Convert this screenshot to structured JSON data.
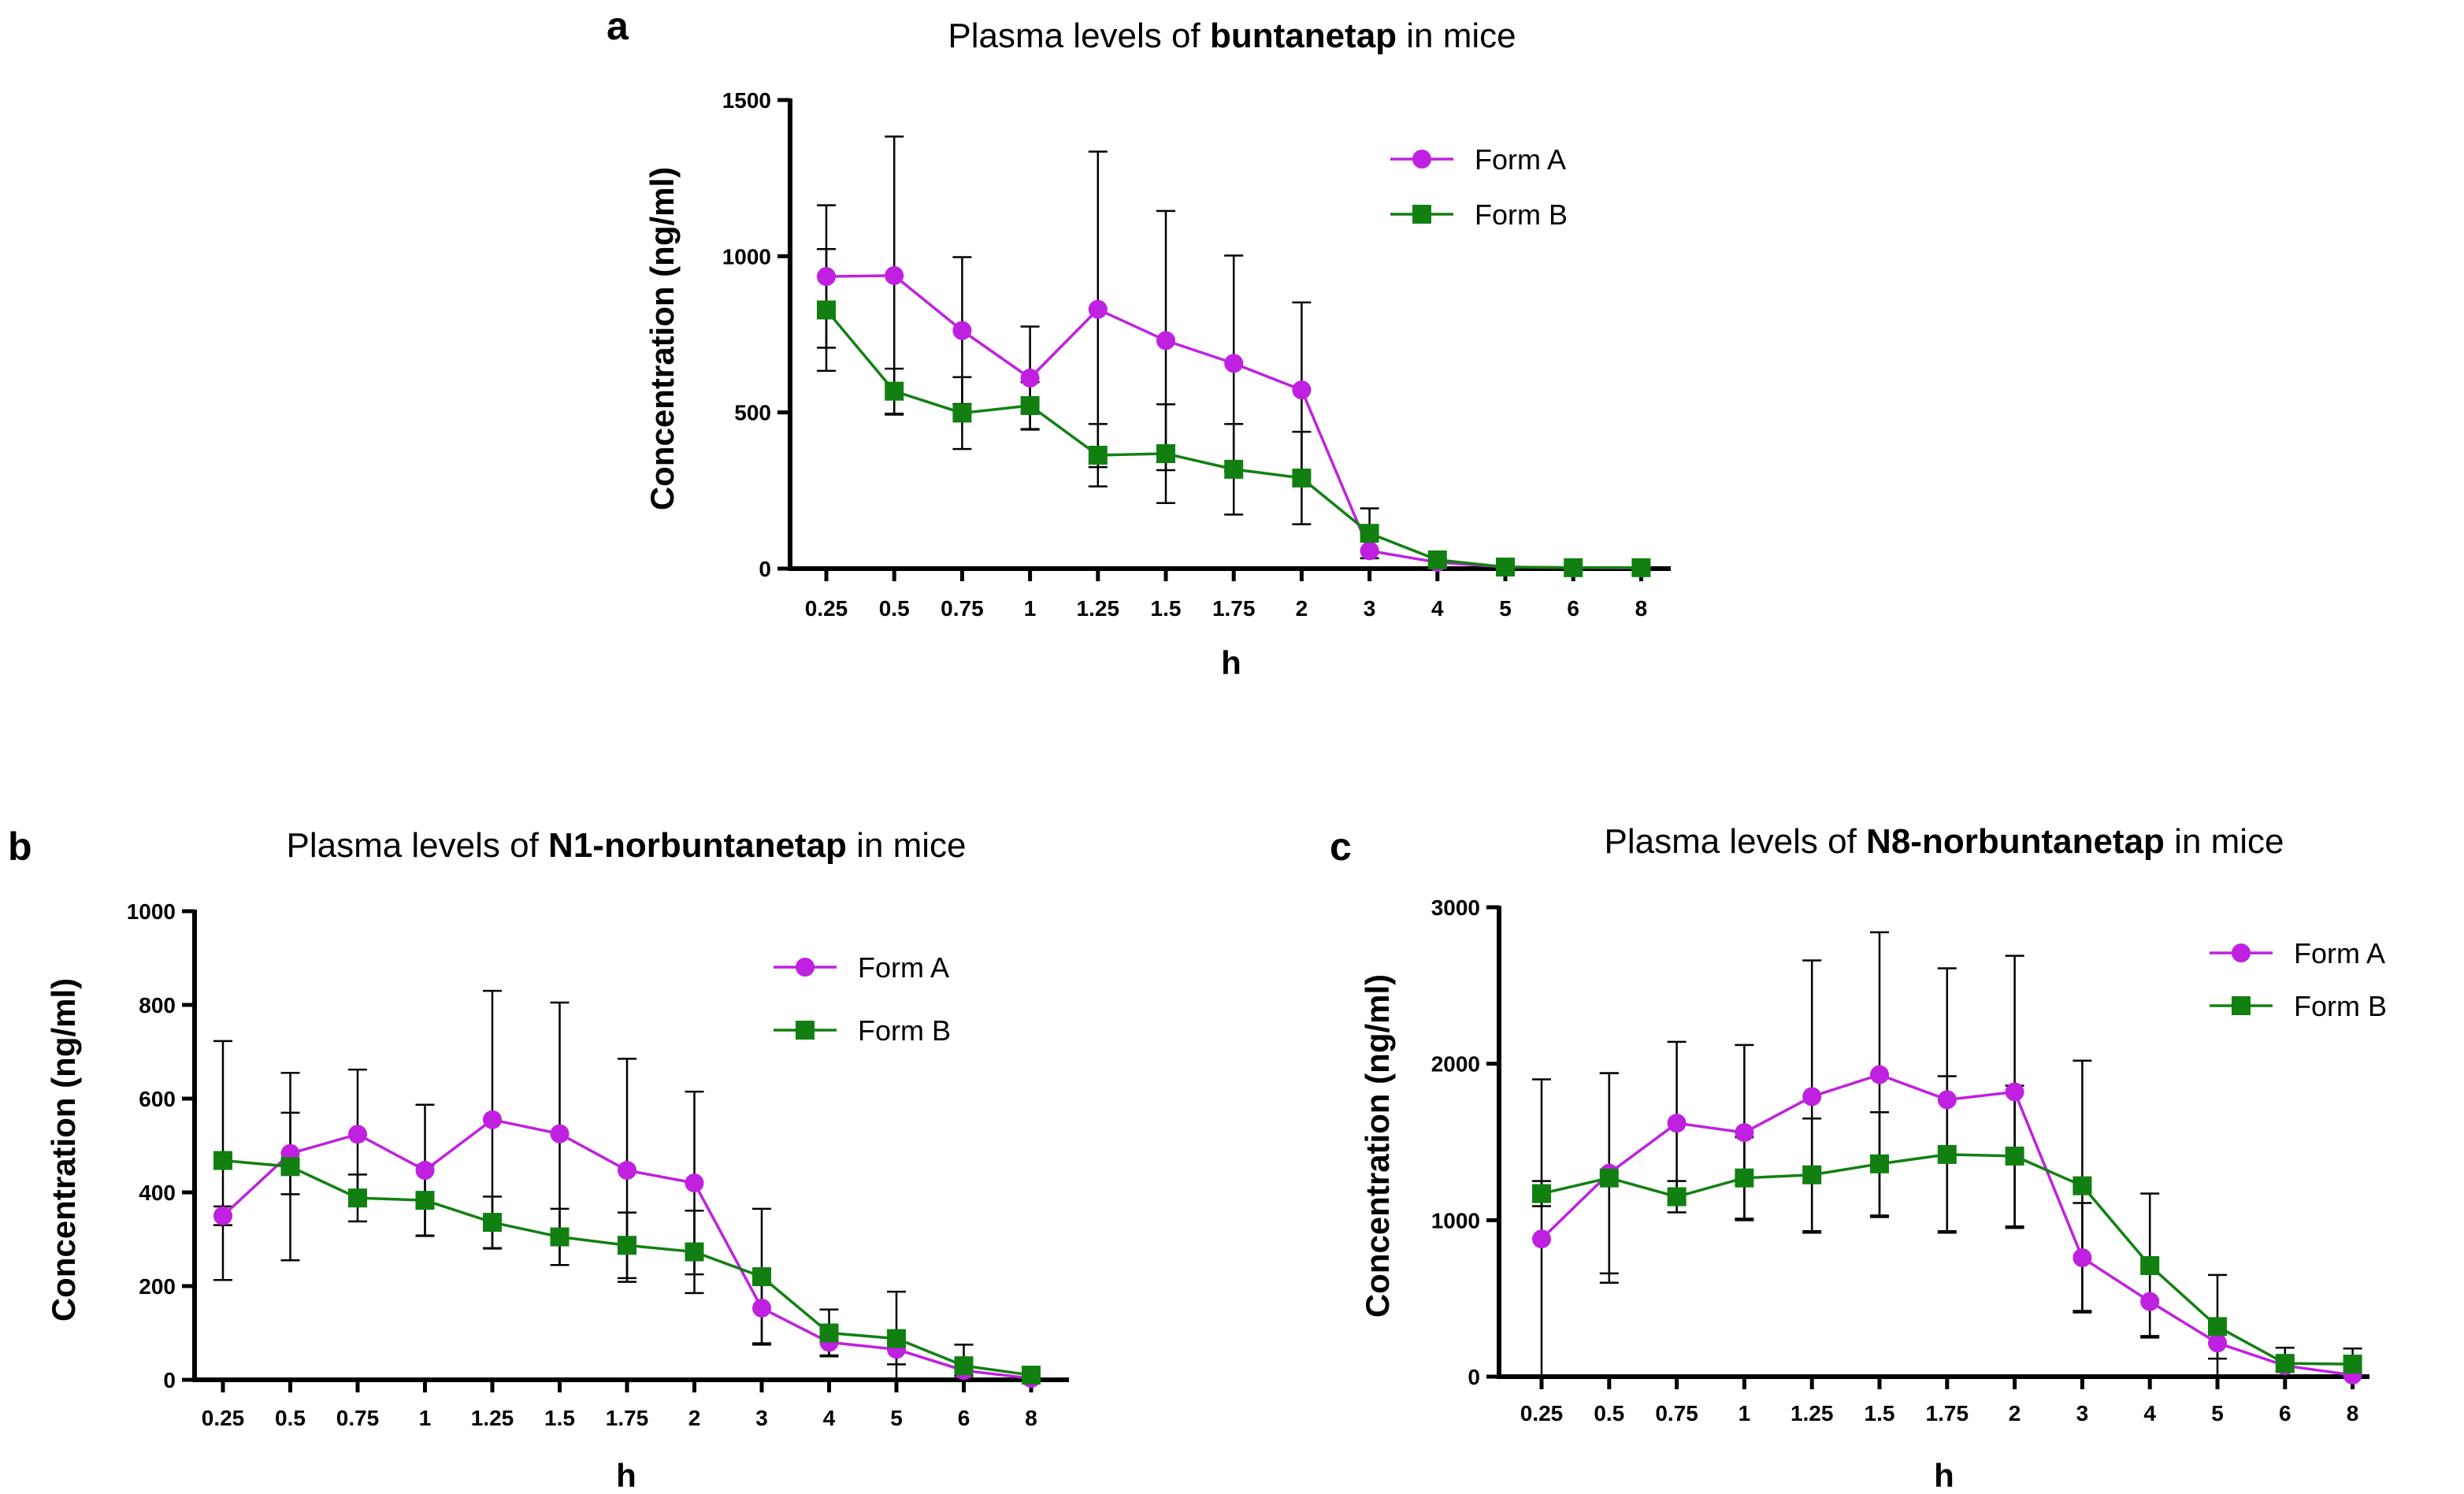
{
  "colors": {
    "form_a": "#c020e0",
    "form_b": "#118011",
    "axis": "#000000"
  },
  "chart_data": [
    {
      "panel": "a",
      "type": "line",
      "title_pre": "Plasma levels of ",
      "title_bold": "buntanetap",
      "title_post": " in mice",
      "xlabel": "h",
      "ylabel": "Concentration (ng/ml)",
      "categories": [
        "0.25",
        "0.5",
        "0.75",
        "1",
        "1.25",
        "1.5",
        "1.75",
        "2",
        "3",
        "4",
        "5",
        "6",
        "8"
      ],
      "ylim": [
        0,
        1500
      ],
      "yticks": [
        0,
        500,
        1000,
        1500
      ],
      "legend_position": "top-right",
      "series": [
        {
          "name": "Form A",
          "marker": "circle",
          "values": [
            935,
            938,
            762,
            610,
            830,
            730,
            657,
            572,
            57,
            20,
            5,
            3,
            2
          ],
          "errors": [
            228,
            445,
            235,
            165,
            505,
            415,
            345,
            280,
            0,
            0,
            0,
            0,
            0
          ]
        },
        {
          "name": "Form B",
          "marker": "square",
          "values": [
            828,
            568,
            498,
            522,
            363,
            368,
            318,
            290,
            113,
            28,
            5,
            3,
            3
          ],
          "errors": [
            195,
            72,
            115,
            75,
            100,
            158,
            145,
            148,
            80,
            0,
            0,
            0,
            0
          ]
        }
      ]
    },
    {
      "panel": "b",
      "type": "line",
      "title_pre": "Plasma levels of ",
      "title_bold": "N1-norbuntanetap",
      "title_post": " in mice",
      "xlabel": "h",
      "ylabel": "Concentration (ng/ml)",
      "categories": [
        "0.25",
        "0.5",
        "0.75",
        "1",
        "1.25",
        "1.5",
        "1.75",
        "2",
        "3",
        "4",
        "5",
        "6",
        "8"
      ],
      "ylim": [
        0,
        1000
      ],
      "yticks": [
        0,
        200,
        400,
        600,
        800,
        1000
      ],
      "legend_position": "top-right",
      "series": [
        {
          "name": "Form A",
          "marker": "circle",
          "values": [
            350,
            483,
            524,
            447,
            555,
            525,
            447,
            420,
            153,
            80,
            65,
            20,
            3
          ],
          "errors": [
            20,
            87,
            138,
            140,
            275,
            280,
            238,
            195,
            75,
            28,
            32,
            12,
            3
          ]
        },
        {
          "name": "Form B",
          "marker": "square",
          "values": [
            468,
            455,
            388,
            383,
            336,
            305,
            287,
            273,
            220,
            100,
            88,
            30,
            10
          ],
          "errors": [
            255,
            200,
            50,
            75,
            55,
            60,
            70,
            88,
            145,
            50,
            100,
            45,
            5
          ]
        }
      ]
    },
    {
      "panel": "c",
      "type": "line",
      "title_pre": "Plasma levels of ",
      "title_bold": "N8-norbuntanetap",
      "title_post": " in mice",
      "xlabel": "h",
      "ylabel": "Concentration (ng/ml)",
      "categories": [
        "0.25",
        "0.5",
        "0.75",
        "1",
        "1.25",
        "1.5",
        "1.75",
        "2",
        "3",
        "4",
        "5",
        "6",
        "8"
      ],
      "ylim": [
        0,
        3000
      ],
      "yticks": [
        0,
        1000,
        2000,
        3000
      ],
      "legend_position": "top-right",
      "series": [
        {
          "name": "Form A",
          "marker": "circle",
          "values": [
            880,
            1300,
            1620,
            1560,
            1790,
            1930,
            1770,
            1820,
            760,
            480,
            215,
            70,
            10
          ],
          "errors": [
            1020,
            640,
            520,
            560,
            870,
            910,
            840,
            870,
            350,
            220,
            100,
            40,
            10
          ]
        },
        {
          "name": "Form B",
          "marker": "square",
          "values": [
            1170,
            1270,
            1150,
            1270,
            1290,
            1360,
            1420,
            1410,
            1220,
            710,
            320,
            85,
            80
          ],
          "errors": [
            80,
            670,
            100,
            260,
            360,
            330,
            500,
            450,
            800,
            460,
            330,
            100,
            100
          ]
        }
      ]
    }
  ]
}
